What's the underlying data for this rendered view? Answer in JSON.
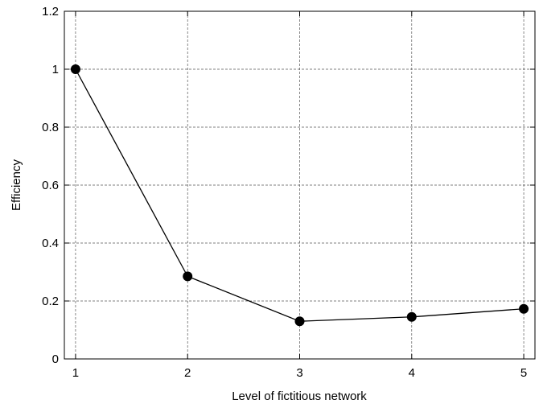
{
  "chart_data": {
    "type": "line",
    "title": "",
    "xlabel": "Level of fictitious network",
    "ylabel": "Efficiency",
    "x": [
      1,
      2,
      3,
      4,
      5
    ],
    "series": [
      {
        "values": [
          1.0,
          0.285,
          0.13,
          0.145,
          0.173
        ]
      }
    ],
    "xlim": [
      0.9,
      5.1
    ],
    "ylim": [
      0,
      1.2
    ],
    "xticks": [
      1,
      2,
      3,
      4,
      5
    ],
    "yticks": [
      0,
      0.2,
      0.4,
      0.6,
      0.8,
      1,
      1.2
    ],
    "xtick_labels": [
      "1",
      "2",
      "3",
      "4",
      "5"
    ],
    "ytick_labels": [
      "0",
      "0.2",
      "0.4",
      "0.6",
      "0.8",
      "1",
      "1.2"
    ],
    "grid": true,
    "grid_style": "dashed",
    "line_color": "#000000",
    "marker": "filled-circle",
    "legend": "none"
  }
}
